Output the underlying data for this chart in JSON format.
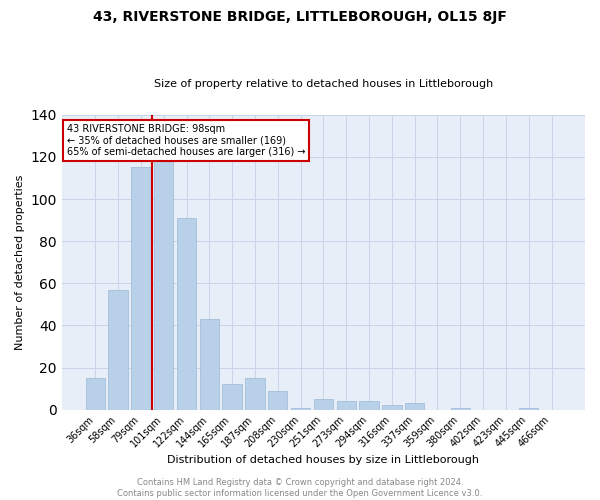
{
  "title": "43, RIVERSTONE BRIDGE, LITTLEBOROUGH, OL15 8JF",
  "subtitle": "Size of property relative to detached houses in Littleborough",
  "xlabel": "Distribution of detached houses by size in Littleborough",
  "ylabel": "Number of detached properties",
  "categories": [
    "36sqm",
    "58sqm",
    "79sqm",
    "101sqm",
    "122sqm",
    "144sqm",
    "165sqm",
    "187sqm",
    "208sqm",
    "230sqm",
    "251sqm",
    "273sqm",
    "294sqm",
    "316sqm",
    "337sqm",
    "359sqm",
    "380sqm",
    "402sqm",
    "423sqm",
    "445sqm",
    "466sqm"
  ],
  "values": [
    15,
    57,
    115,
    118,
    91,
    43,
    12,
    15,
    9,
    1,
    5,
    4,
    4,
    2,
    3,
    0,
    1,
    0,
    0,
    1,
    0
  ],
  "bar_color": "#b8d0e8",
  "bar_edge_color": "#9ab8d8",
  "annotation_text": "43 RIVERSTONE BRIDGE: 98sqm\n← 35% of detached houses are smaller (169)\n65% of semi-detached houses are larger (316) →",
  "annotation_box_color": "#ffffff",
  "annotation_box_edge": "#cc0000",
  "vline_color": "#cc0000",
  "grid_color": "#c8d4e8",
  "background_color": "#e8eef8",
  "footer_text": "Contains HM Land Registry data © Crown copyright and database right 2024.\nContains public sector information licensed under the Open Government Licence v3.0.",
  "ylim": [
    0,
    140
  ],
  "yticks": [
    0,
    20,
    40,
    60,
    80,
    100,
    120,
    140
  ],
  "title_fontsize": 10,
  "subtitle_fontsize": 8,
  "axis_label_fontsize": 8,
  "tick_fontsize": 7,
  "annotation_fontsize": 7,
  "footer_fontsize": 6
}
